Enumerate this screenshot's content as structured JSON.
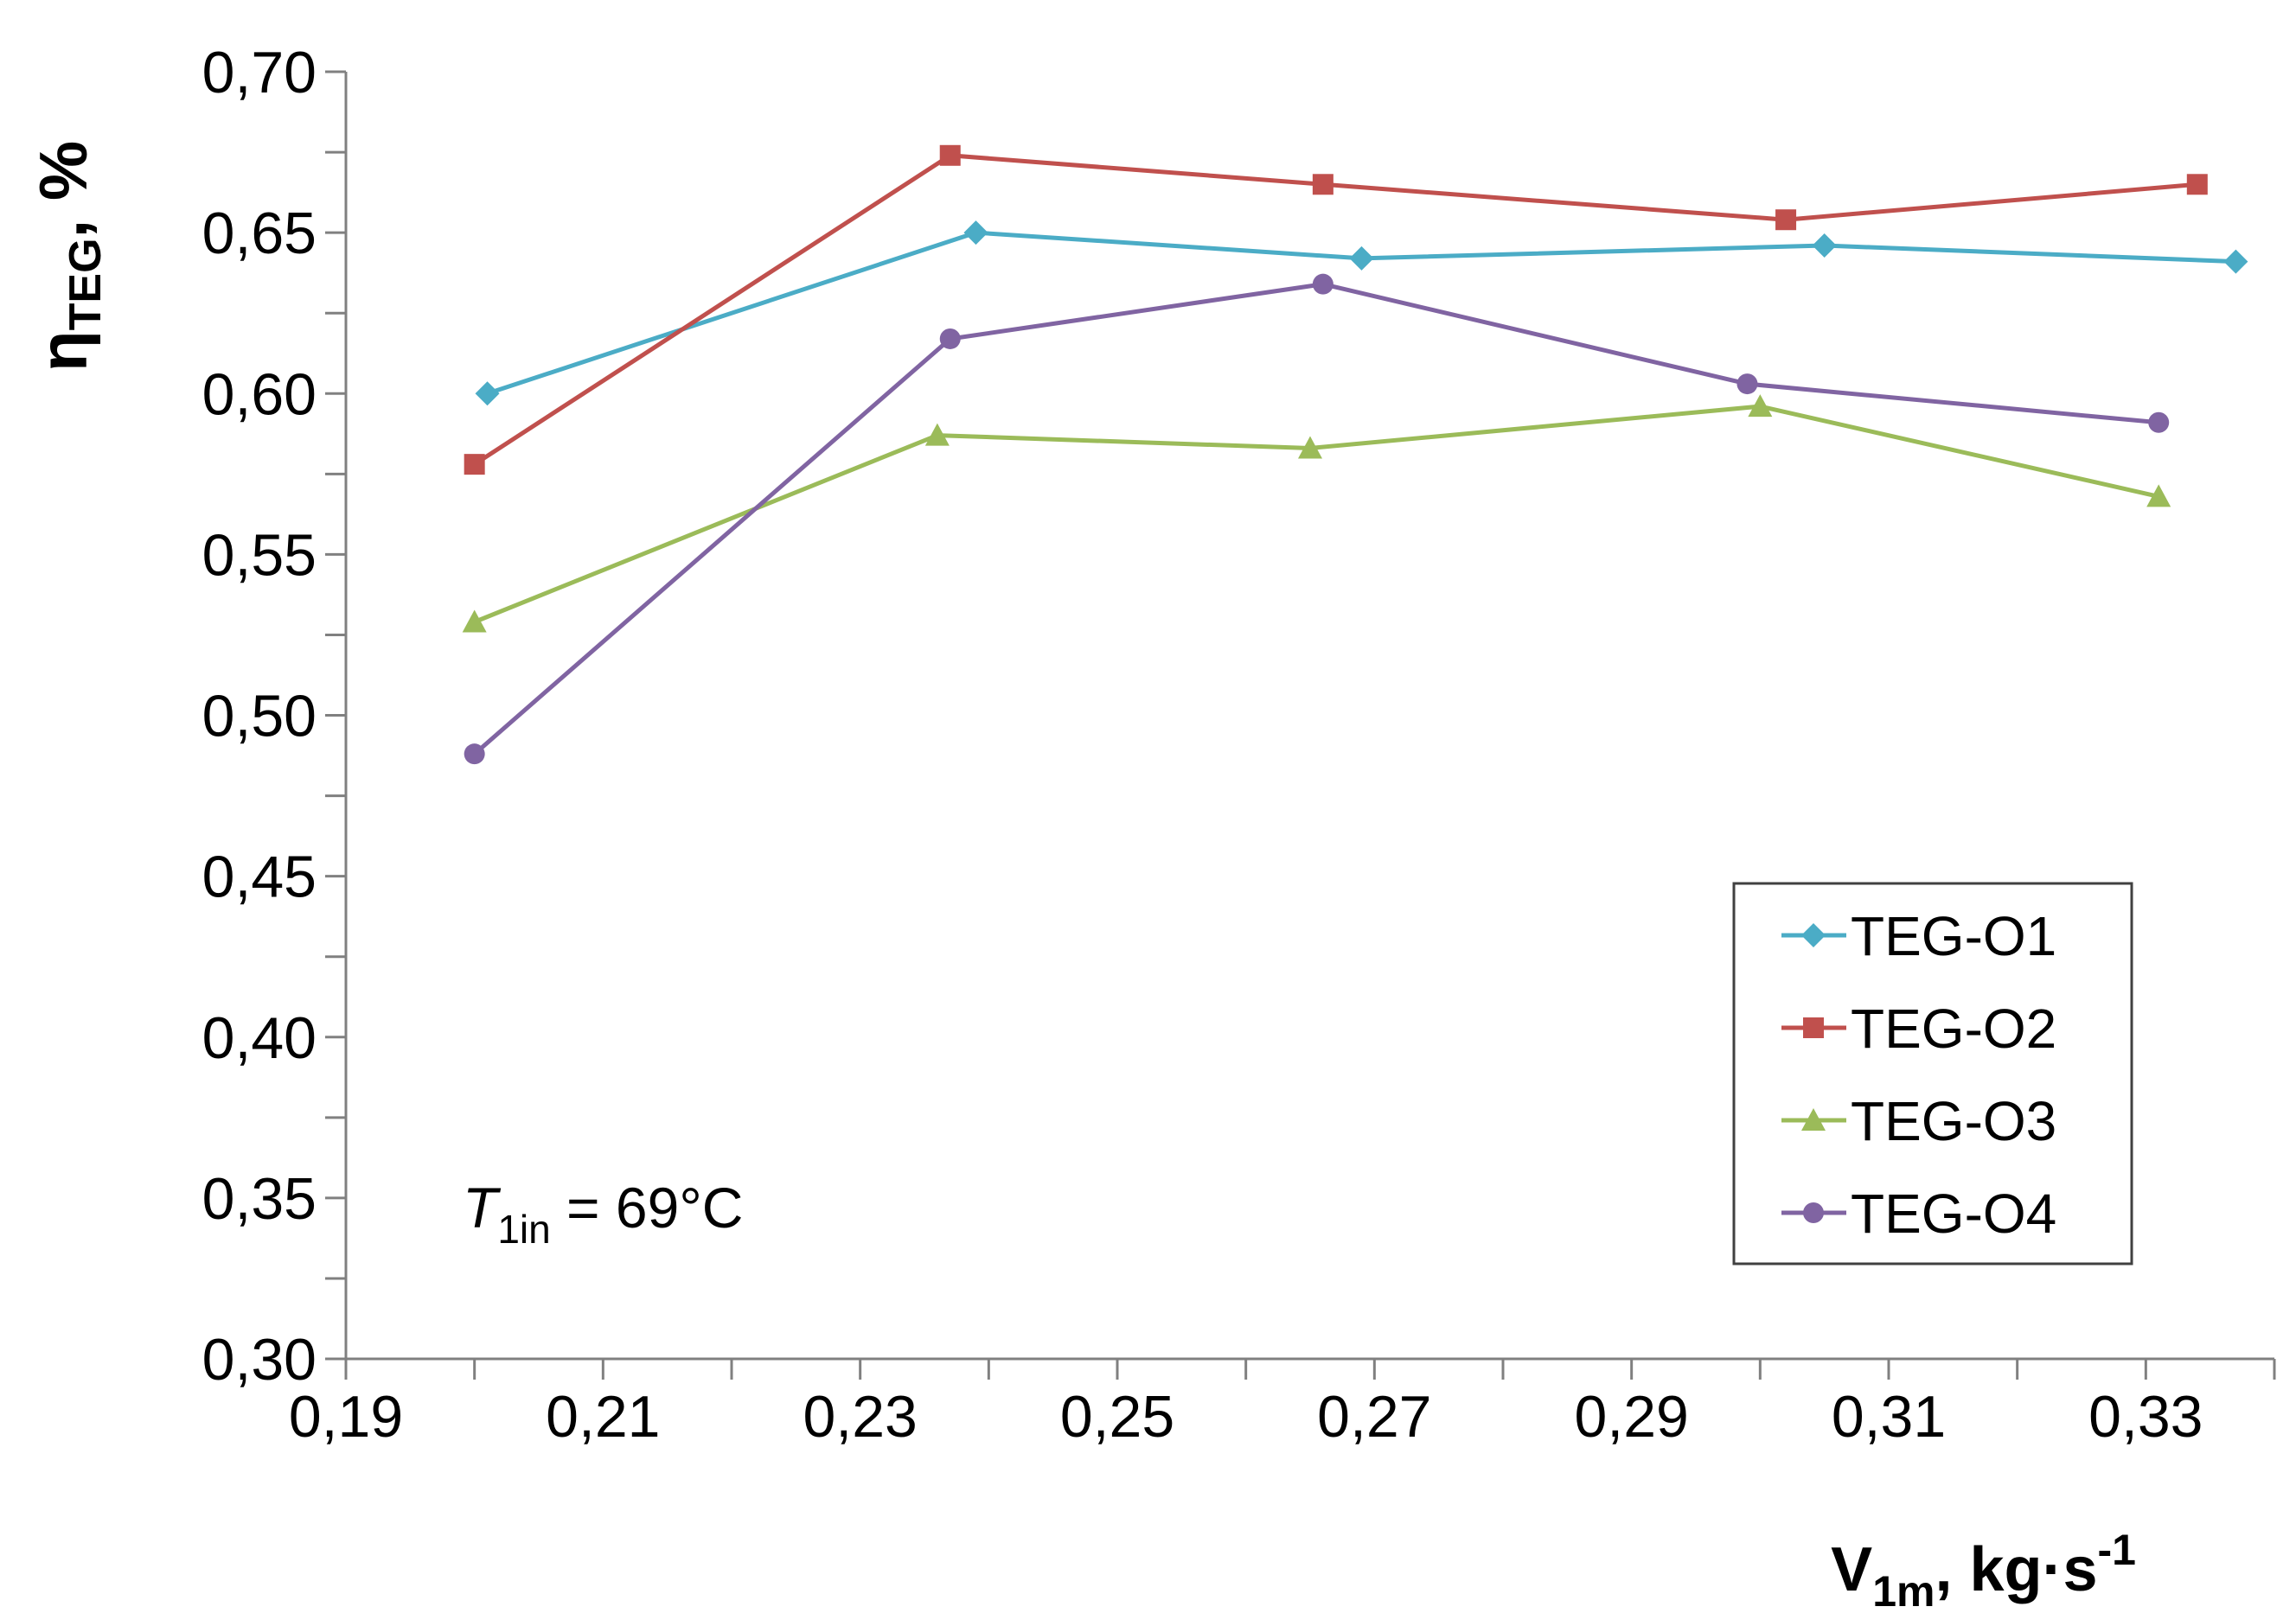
{
  "chart_data": {
    "type": "line",
    "xlabel": {
      "main": "V",
      "sub": "1m",
      "unit": ", kg·s",
      "sup": "-1"
    },
    "ylabel": {
      "main": "η",
      "sub": "TEG",
      "unit": ", %"
    },
    "xlim": [
      0.19,
      0.34
    ],
    "ylim": [
      0.3,
      0.7
    ],
    "x_ticks": [
      0.19,
      0.21,
      0.23,
      0.25,
      0.27,
      0.29,
      0.31,
      0.33
    ],
    "x_tick_labels": [
      "0,19",
      "0,21",
      "0,23",
      "0,25",
      "0,27",
      "0,29",
      "0,31",
      "0,33"
    ],
    "y_ticks": [
      0.3,
      0.35,
      0.4,
      0.45,
      0.5,
      0.55,
      0.6,
      0.65,
      0.7
    ],
    "y_tick_labels": [
      "0,30",
      "0,35",
      "0,40",
      "0,45",
      "0,50",
      "0,55",
      "0,60",
      "0,65",
      "0,70"
    ],
    "x_minor_step": 0.01,
    "y_minor_step": 0.025,
    "grid": false,
    "legend_position": "lower-right",
    "annotation": {
      "main": "T",
      "sub": "1in",
      "rest": " = 69°C"
    },
    "series": [
      {
        "name": "TEG-O1",
        "color": "#4BACC6",
        "marker": "diamond",
        "points": [
          [
            0.201,
            0.6
          ],
          [
            0.239,
            0.65
          ],
          [
            0.269,
            0.642
          ],
          [
            0.305,
            0.646
          ],
          [
            0.337,
            0.641
          ]
        ]
      },
      {
        "name": "TEG-O2",
        "color": "#C0504D",
        "marker": "square",
        "points": [
          [
            0.2,
            0.578
          ],
          [
            0.237,
            0.674
          ],
          [
            0.266,
            0.665
          ],
          [
            0.302,
            0.654
          ],
          [
            0.334,
            0.665
          ]
        ]
      },
      {
        "name": "TEG-O3",
        "color": "#9BBB59",
        "marker": "triangle",
        "points": [
          [
            0.2,
            0.529
          ],
          [
            0.236,
            0.587
          ],
          [
            0.265,
            0.583
          ],
          [
            0.3,
            0.596
          ],
          [
            0.331,
            0.568
          ]
        ]
      },
      {
        "name": "TEG-O4",
        "color": "#8064A2",
        "marker": "circle",
        "points": [
          [
            0.2,
            0.488
          ],
          [
            0.237,
            0.617
          ],
          [
            0.266,
            0.634
          ],
          [
            0.299,
            0.603
          ],
          [
            0.331,
            0.591
          ]
        ]
      }
    ]
  }
}
